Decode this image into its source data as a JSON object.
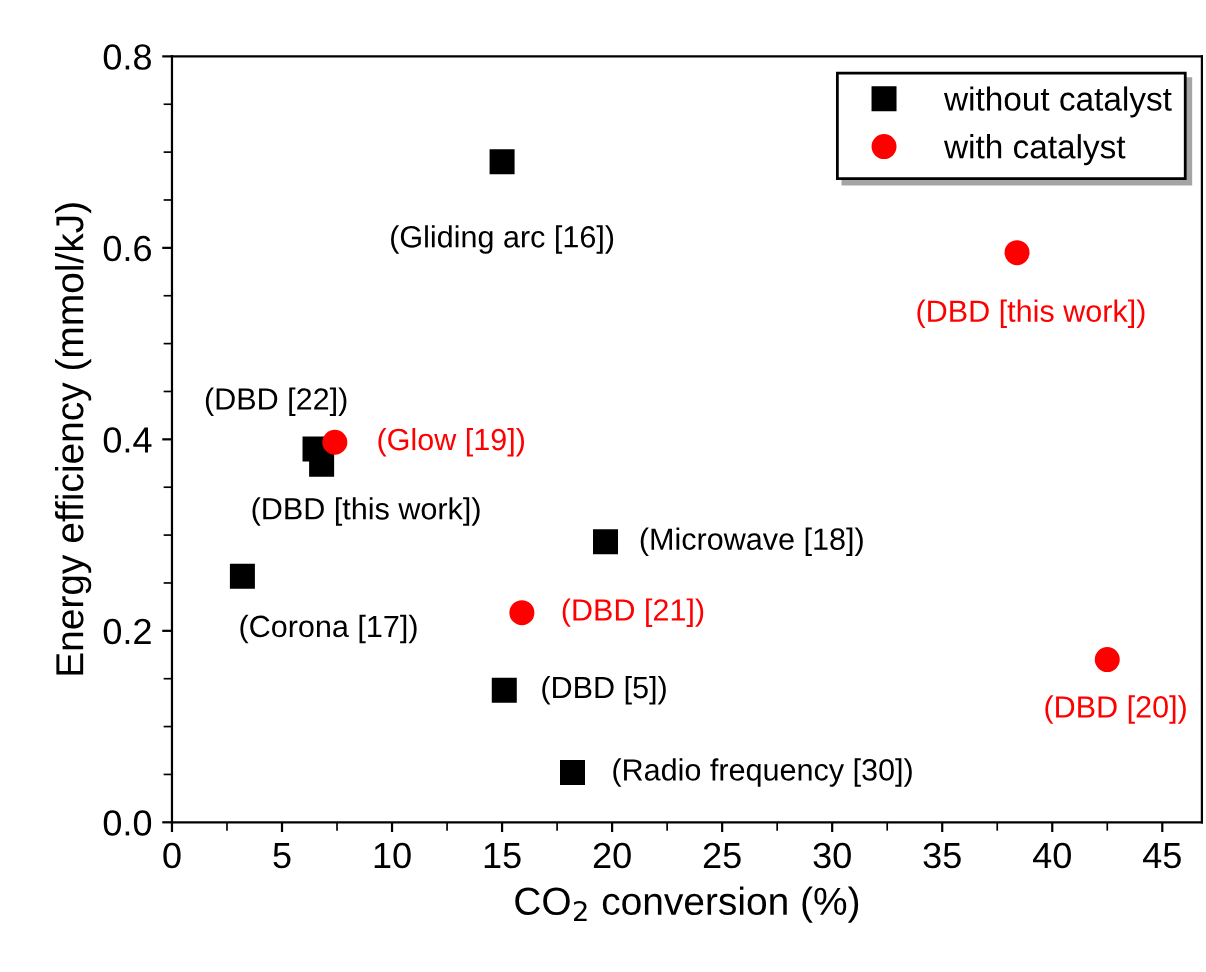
{
  "chart_data": {
    "type": "scatter",
    "xlabel": "CO$_{2}$ conversion (%)",
    "ylabel": "Energy efficiency (mmol/kJ)",
    "xlim": [
      0,
      46.8
    ],
    "xticks": [
      0,
      5,
      10,
      15,
      20,
      25,
      30,
      35,
      40,
      45
    ],
    "ylim": [
      0,
      0.8
    ],
    "yticks": [
      {
        "value": 0,
        "label": "0.0"
      },
      0.2,
      0.4,
      0.6,
      0.8
    ],
    "grid": false,
    "legend": "top right",
    "series": [
      {
        "name": "without catalyst",
        "color": "#000000",
        "marker": "square",
        "x": [
          15.0,
          6.5,
          6.8,
          3.2,
          19.7,
          15.1,
          18.2
        ],
        "values": [
          0.69,
          0.39,
          0.374,
          0.257,
          0.293,
          0.138,
          0.052
        ]
      },
      {
        "name": "with catalyst",
        "color": "#ff0000",
        "marker": "circle",
        "x": [
          38.4,
          7.4,
          15.9,
          42.5
        ],
        "values": [
          0.595,
          0.397,
          0.219,
          0.17
        ]
      }
    ],
    "annotations": [
      {
        "text": "(Gliding arc [16])",
        "x": 15.0,
        "y": 0.69
      },
      {
        "text": "(DBD [22])",
        "x": 6.5,
        "y": 0.39
      },
      {
        "text": "(DBD [this work])",
        "x": 6.8,
        "y": 0.374
      },
      {
        "text": "(Corona [17])",
        "x": 3.2,
        "y": 0.257
      },
      {
        "text": "(Microwave [18])",
        "x": 19.7,
        "y": 0.293
      },
      {
        "text": "(DBD [5])",
        "x": 15.1,
        "y": 0.138
      },
      {
        "text": "(Radio frequency [30])",
        "x": 18.2,
        "y": 0.052
      },
      {
        "text": "(DBD [this work])",
        "x": 38.4,
        "y": 0.595
      },
      {
        "text": "(Glow [19])",
        "x": 7.4,
        "y": 0.397
      },
      {
        "text": "(DBD [21])",
        "x": 15.9,
        "y": 0.219
      },
      {
        "text": "(DBD [20])",
        "x": 42.5,
        "y": 0.17
      }
    ]
  }
}
